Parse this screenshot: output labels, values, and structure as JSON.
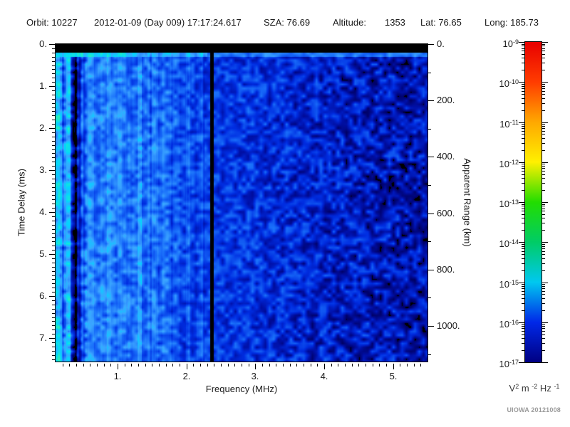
{
  "header": {
    "orbit_label": "Orbit:",
    "orbit_value": "10227",
    "datetime": "2012-01-09 (Day 009) 17:17:24.617",
    "sza_label": "SZA:",
    "sza_value": "76.69",
    "altitude_label": "Altitude:",
    "altitude_value": "1353",
    "lat_label": "Lat:",
    "lat_value": "76.65",
    "long_label": "Long:",
    "long_value": "185.73"
  },
  "axes": {
    "x": {
      "label": "Frequency (MHz)",
      "min": 0.1,
      "max": 5.5,
      "majors": [
        1,
        2,
        3,
        4,
        5
      ],
      "major_labels": [
        "1.",
        "2.",
        "3.",
        "4.",
        "5."
      ],
      "minor_step": 0.1
    },
    "y_left": {
      "label": "Time Delay (ms)",
      "min": 0,
      "max": 7.559,
      "majors": [
        0,
        1,
        2,
        3,
        4,
        5,
        6,
        7
      ],
      "major_labels": [
        "0.",
        "1.",
        "2.",
        "3.",
        "4.",
        "5.",
        "6.",
        "7."
      ],
      "minor_step": 0.1
    },
    "y_right": {
      "label": "Apparent Range (km)",
      "min": 0,
      "max": 1126,
      "majors": [
        0,
        200,
        400,
        600,
        800,
        1000
      ],
      "major_labels": [
        "0.",
        "200.",
        "400.",
        "600.",
        "800.",
        "1000."
      ],
      "minor_step": 100
    }
  },
  "colorbar": {
    "mantissa": "10",
    "decade_exponents": [
      "-9",
      "-10",
      "-11",
      "-12",
      "-13",
      "-14",
      "-15",
      "-16",
      "-17"
    ],
    "units_parts": [
      [
        "V",
        "2"
      ],
      [
        " m ",
        "-2"
      ],
      [
        " Hz ",
        "-1"
      ]
    ]
  },
  "credit": "UIOWA 20121008",
  "chart_data": {
    "type": "heatmap",
    "subtype": "radar-sounder-spectrogram",
    "title": "",
    "xlabel": "Frequency (MHz)",
    "x_range": [
      0.1,
      5.5
    ],
    "ylabel": "Time Delay (ms)",
    "y_range": [
      0,
      7.559
    ],
    "y_direction": "down",
    "y2label": "Apparent Range (km)",
    "y2_range": [
      0,
      1126
    ],
    "grid": false,
    "legend": "colorbar-right",
    "color_scale": {
      "units": "V^2 m^-2 Hz^-1",
      "scale": "log10",
      "min": 1e-17,
      "max": 1e-09,
      "stops_top_to_bottom": [
        "#e80000",
        "#ff3c00",
        "#ffa800",
        "#fff000",
        "#22dd00",
        "#00cc66",
        "#00c8f0",
        "#0028e8",
        "#000082"
      ]
    },
    "features": {
      "blank_top_ms": 0.2,
      "surface_echo_line_ms": [
        0.2,
        0.3
      ],
      "black_band_mhz": [
        2.345,
        2.4
      ],
      "dark_band_mhz": [
        0.31,
        0.45
      ],
      "bright_stripe_mhz": [
        1.29,
        1.345
      ],
      "noise_floor_exp_by_freq": [
        [
          0.1,
          -15.0
        ],
        [
          0.3,
          -15.1
        ],
        [
          0.33,
          -16.4
        ],
        [
          0.38,
          -16.8
        ],
        [
          0.44,
          -16.3
        ],
        [
          0.52,
          -15.2
        ],
        [
          0.9,
          -15.25
        ],
        [
          1.6,
          -15.45
        ],
        [
          2.28,
          -15.8
        ],
        [
          2.45,
          -15.9
        ],
        [
          3.0,
          -15.95
        ],
        [
          3.5,
          -16.1
        ],
        [
          4.2,
          -16.25
        ],
        [
          5.5,
          -16.45
        ]
      ]
    },
    "render": {
      "seed": 20121008,
      "black_below": -17.02,
      "palette": [
        [
          -17.0,
          0,
          0,
          100
        ],
        [
          -16.5,
          0,
          15,
          165
        ],
        [
          -16.0,
          0,
          45,
          225
        ],
        [
          -15.4,
          25,
          110,
          250
        ],
        [
          -14.9,
          60,
          165,
          255
        ],
        [
          -14.4,
          0,
          215,
          255
        ],
        [
          -13.9,
          40,
          240,
          185
        ],
        [
          -13.2,
          135,
          255,
          140
        ]
      ]
    }
  }
}
